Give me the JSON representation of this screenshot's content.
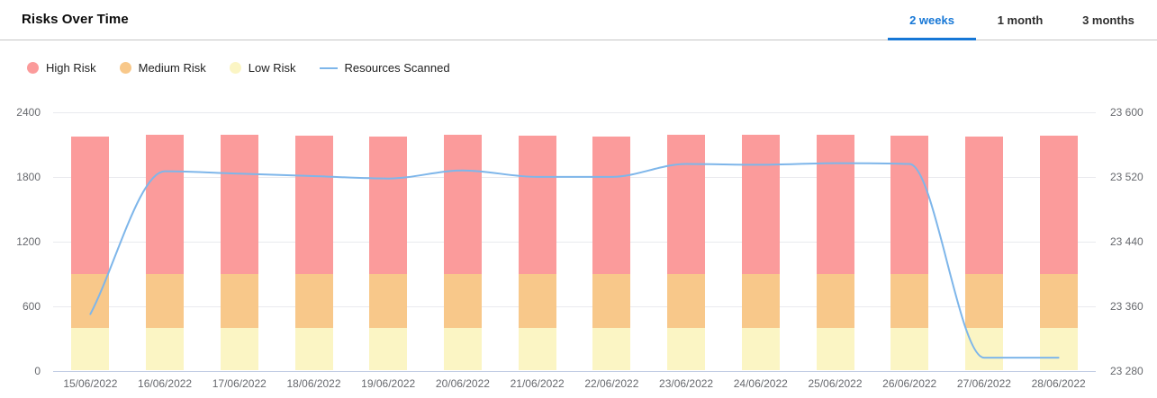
{
  "header": {
    "title": "Risks Over Time",
    "tabs": [
      {
        "label": "2 weeks",
        "active": true
      },
      {
        "label": "1 month",
        "active": false
      },
      {
        "label": "3 months",
        "active": false
      }
    ]
  },
  "legend": {
    "items": [
      {
        "label": "High Risk",
        "marker": "circle",
        "color": "#fb9b9b"
      },
      {
        "label": "Medium Risk",
        "marker": "circle",
        "color": "#f8c88a"
      },
      {
        "label": "Low Risk",
        "marker": "circle",
        "color": "#fbf5c4"
      },
      {
        "label": "Resources Scanned",
        "marker": "line",
        "color": "#7eb6ea"
      }
    ]
  },
  "chart_data": {
    "type": "bar",
    "subtype": "stacked-bars-with-line-overlay",
    "title": "Risks Over Time",
    "categories": [
      "15/06/2022",
      "16/06/2022",
      "17/06/2022",
      "18/06/2022",
      "19/06/2022",
      "20/06/2022",
      "21/06/2022",
      "22/06/2022",
      "23/06/2022",
      "24/06/2022",
      "25/06/2022",
      "26/06/2022",
      "27/06/2022",
      "28/06/2022"
    ],
    "series": [
      {
        "name": "Low Risk",
        "type": "bar",
        "stack": "risks",
        "color": "#fbf5c4",
        "values": [
          400,
          400,
          400,
          400,
          400,
          400,
          400,
          400,
          400,
          400,
          400,
          400,
          400,
          400
        ]
      },
      {
        "name": "Medium Risk",
        "type": "bar",
        "stack": "risks",
        "color": "#f8c88a",
        "values": [
          500,
          500,
          500,
          500,
          500,
          500,
          500,
          500,
          500,
          500,
          500,
          500,
          500,
          500
        ]
      },
      {
        "name": "High Risk",
        "type": "bar",
        "stack": "risks",
        "color": "#fb9b9b",
        "values": [
          1275,
          1295,
          1295,
          1280,
          1275,
          1290,
          1280,
          1275,
          1290,
          1290,
          1290,
          1280,
          1275,
          1280
        ]
      },
      {
        "name": "Resources Scanned",
        "type": "line",
        "axis": "right",
        "color": "#7eb6ea",
        "values": [
          23350,
          23527,
          23524,
          23521,
          23518,
          23528,
          23520,
          23520,
          23536,
          23535,
          23537,
          23536,
          23296,
          23296
        ]
      }
    ],
    "left_axis": {
      "min": 0,
      "max": 2400,
      "ticks": [
        "2400",
        "1800",
        "1200",
        "600",
        "0"
      ]
    },
    "right_axis": {
      "min": 23280,
      "max": 23600,
      "ticks": [
        "23 600",
        "23 520",
        "23 440",
        "23 360",
        "23 280"
      ]
    },
    "grid": true,
    "legend_position": "top-left",
    "xlabel": "",
    "ylabel": ""
  },
  "colors": {
    "accent": "#1677d6",
    "gridline": "#e9eaee",
    "baseline": "#c2cde4",
    "axis_text": "#67696e"
  }
}
